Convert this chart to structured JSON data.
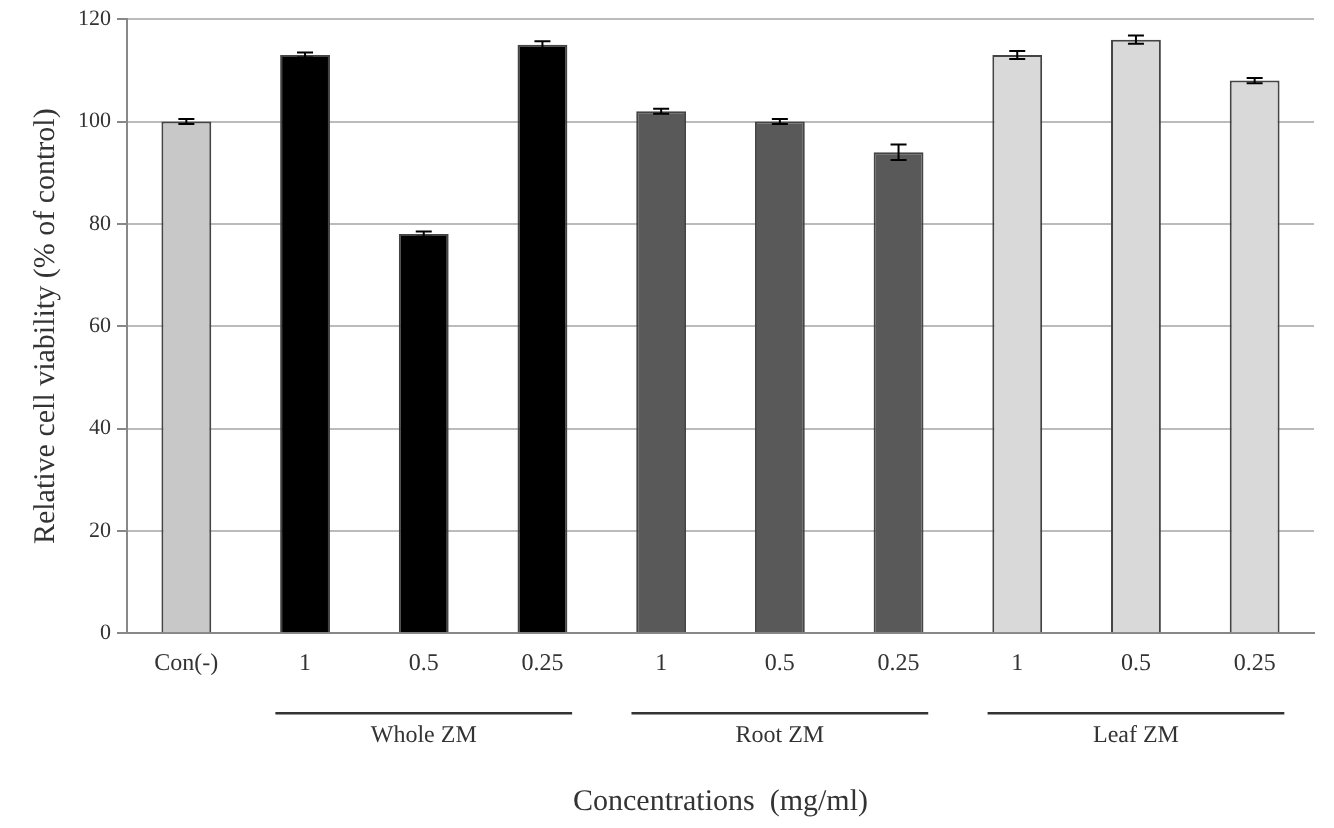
{
  "chart_data": {
    "type": "bar",
    "xlabel": "Concentrations  (mg/ml)",
    "ylabel": "Relative cell viability (% of control)",
    "categories": [
      "Con(-)",
      "1",
      "0.5",
      "0.25",
      "1",
      "0.5",
      "0.25",
      "1",
      "0.5",
      "0.25"
    ],
    "values": [
      100,
      113,
      78,
      115,
      102,
      100,
      94,
      113,
      116,
      108
    ],
    "errors": [
      0.5,
      0.5,
      0.5,
      0.7,
      0.5,
      0.5,
      1.5,
      0.8,
      0.8,
      0.5
    ],
    "colors": [
      "#c8c8c8",
      "#000000",
      "#000000",
      "#000000",
      "#595959",
      "#595959",
      "#595959",
      "#d9d9d9",
      "#d9d9d9",
      "#d9d9d9"
    ],
    "ylim": [
      0,
      120
    ],
    "yticks": [
      0,
      20,
      40,
      60,
      80,
      100,
      120
    ],
    "grid": "y",
    "annotations": [
      "Whole ZM",
      "Root ZM",
      "Leaf ZM"
    ]
  }
}
